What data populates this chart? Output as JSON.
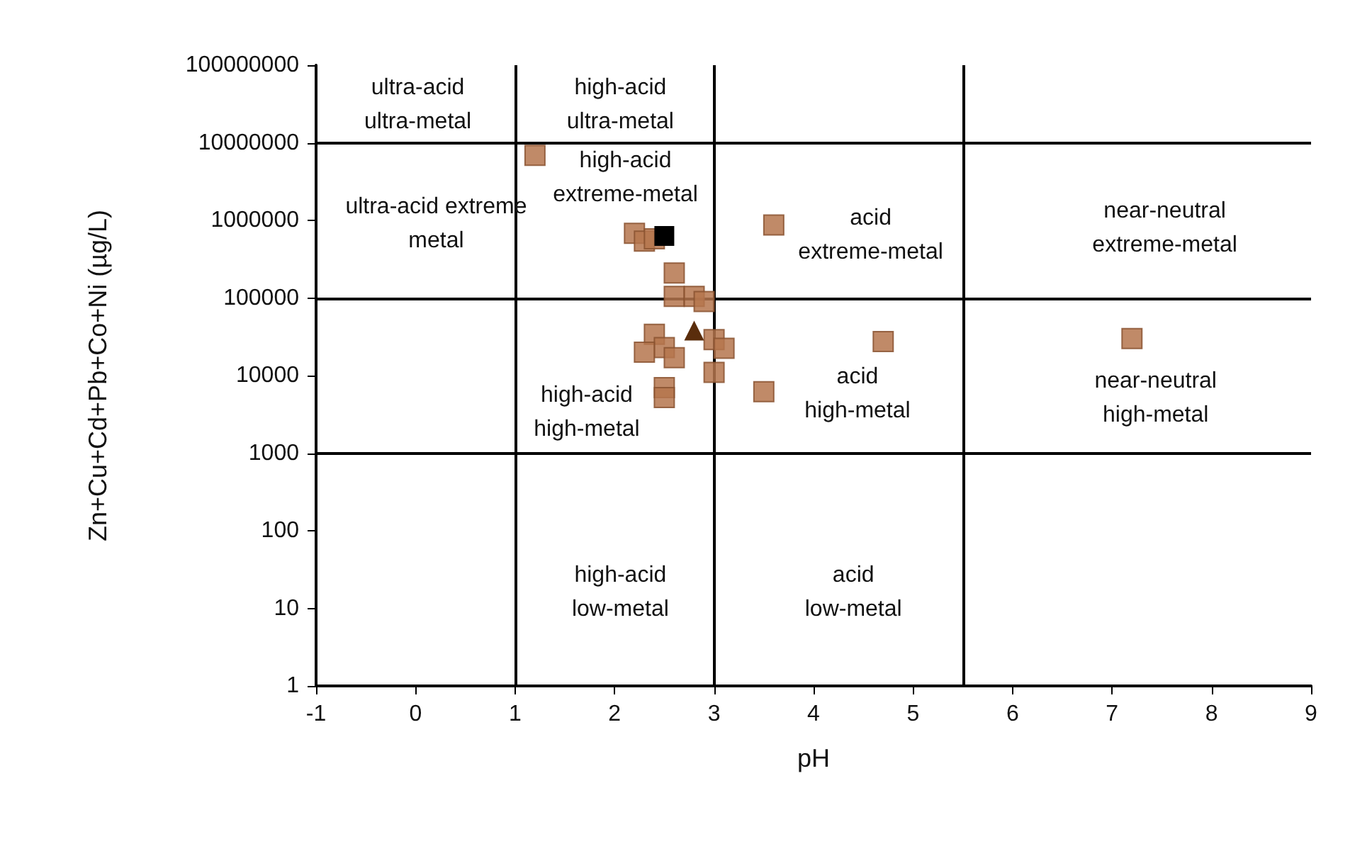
{
  "chart_data": {
    "type": "scatter",
    "xlabel": "pH",
    "ylabel": "Zn+Cu+Cd+Pb+Co+Ni (µg/L)",
    "log": "y",
    "grid": false,
    "marker": "square",
    "xlim": [
      -1,
      9
    ],
    "xticks": [
      -1,
      0,
      1,
      2,
      3,
      4,
      5,
      6,
      7,
      8,
      9
    ],
    "ylim": [
      1,
      100000000
    ],
    "yticks": [
      1,
      10,
      100,
      1000,
      10000,
      100000,
      1000000,
      10000000,
      100000000
    ],
    "series": [
      {
        "color": "#b5764e",
        "x": [
          1.2,
          2.2,
          2.3,
          2.4,
          2.6,
          2.6,
          2.8,
          2.9,
          2.4,
          2.5,
          2.3,
          2.6,
          3.0,
          3.1,
          3.0,
          2.5,
          2.5,
          3.6,
          4.7,
          3.5,
          7.2
        ],
        "values": [
          6900000,
          680000,
          540000,
          580000,
          210000,
          105000,
          105000,
          90000,
          34000,
          23000,
          20000,
          17000,
          29000,
          22500,
          11000,
          7000,
          5200,
          870000,
          27500,
          6200,
          30000
        ]
      },
      {
        "color": "#000000",
        "x": [
          2.5
        ],
        "values": [
          630000
        ]
      },
      {
        "color": "#5a2d0c",
        "marker": "triangle",
        "x": [
          2.8
        ],
        "values": [
          38000
        ]
      }
    ],
    "ref_lines": [
      {
        "axis": "x",
        "value": 1
      },
      {
        "axis": "x",
        "value": 3
      },
      {
        "axis": "x",
        "value": 5.5
      },
      {
        "axis": "y",
        "value": 1000
      },
      {
        "axis": "y",
        "value": 100000
      },
      {
        "axis": "y",
        "value": 10000000
      }
    ],
    "annotations": [
      "ultra-acid\nultra-metal",
      "high-acid\nultra-metal",
      "ultra-acid extreme\nmetal",
      "high-acid\nextreme-metal",
      "acid\nextreme-metal",
      "near-neutral\nextreme-metal",
      "high-acid\nhigh-metal",
      "acid\nhigh-metal",
      "near-neutral\nhigh-metal",
      "high-acid\nlow-metal",
      "acid\nlow-metal"
    ]
  }
}
